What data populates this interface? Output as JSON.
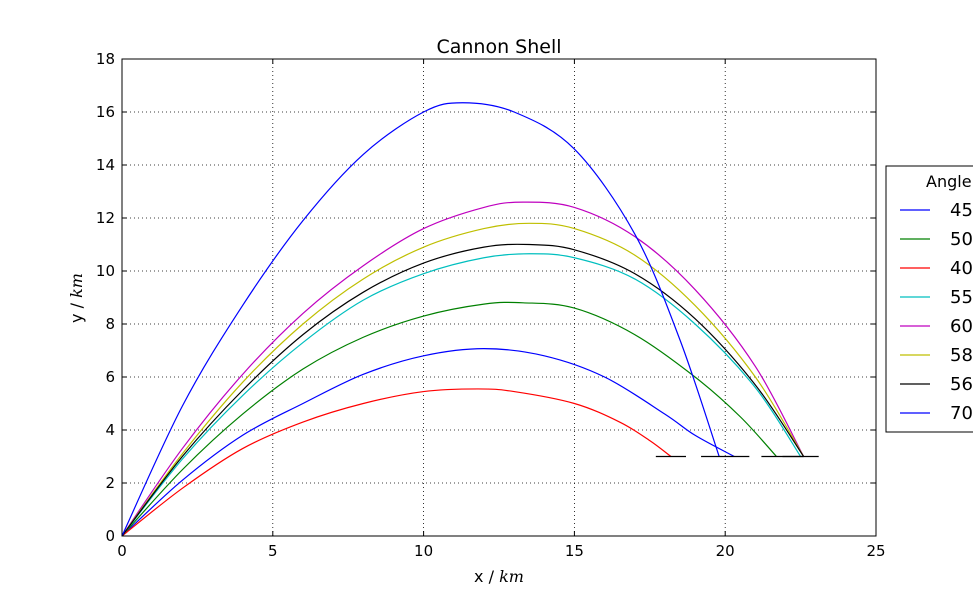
{
  "chart_data": {
    "type": "line",
    "title": "Cannon Shell",
    "xlabel": "x / ",
    "xlabel_unit": "km",
    "ylabel": "y / ",
    "ylabel_unit": "km",
    "xlim": [
      0,
      25
    ],
    "ylim": [
      0,
      18
    ],
    "xticks": [
      0,
      5,
      10,
      15,
      20,
      25
    ],
    "yticks": [
      0,
      2,
      4,
      6,
      8,
      10,
      12,
      14,
      16,
      18
    ],
    "grid": true,
    "legend": {
      "title": "Angle",
      "placement": "outside-right"
    },
    "target_height": 3.0,
    "series": [
      {
        "name": "45",
        "color": "#0000ff",
        "x": [
          0,
          2,
          4,
          6,
          8,
          10,
          12,
          14,
          16,
          18,
          19,
          20.3
        ],
        "y": [
          0,
          2.1,
          3.8,
          5.0,
          6.1,
          6.8,
          7.07,
          6.8,
          6.0,
          4.6,
          3.8,
          3.0
        ]
      },
      {
        "name": "50",
        "color": "#008000",
        "x": [
          0,
          2,
          4,
          6,
          8,
          10,
          12,
          13.3,
          15,
          17,
          19,
          20.5,
          21.7
        ],
        "y": [
          0,
          2.5,
          4.6,
          6.3,
          7.5,
          8.3,
          8.75,
          8.8,
          8.6,
          7.6,
          6.0,
          4.5,
          3.0
        ]
      },
      {
        "name": "40",
        "color": "#ff0000",
        "x": [
          0,
          2,
          4,
          6,
          8,
          10,
          11.8,
          13,
          15,
          16.5,
          17.5,
          18.2
        ],
        "y": [
          0,
          1.8,
          3.3,
          4.3,
          5.0,
          5.45,
          5.55,
          5.45,
          5.0,
          4.3,
          3.6,
          3.0
        ]
      },
      {
        "name": "55",
        "color": "#00bfbf",
        "x": [
          0,
          2,
          4,
          6,
          8,
          10,
          12,
          13.5,
          15,
          17,
          19,
          21,
          22.5
        ],
        "y": [
          0,
          2.9,
          5.3,
          7.3,
          8.9,
          9.9,
          10.5,
          10.65,
          10.5,
          9.7,
          8.0,
          5.6,
          3.0
        ]
      },
      {
        "name": "60",
        "color": "#bf00bf",
        "x": [
          0,
          2,
          4,
          6,
          8,
          10,
          12,
          13.3,
          15,
          17,
          19,
          21,
          22.6
        ],
        "y": [
          0,
          3.3,
          6.1,
          8.4,
          10.2,
          11.6,
          12.4,
          12.6,
          12.4,
          11.3,
          9.3,
          6.4,
          3.0
        ]
      },
      {
        "name": "58",
        "color": "#bfbf00",
        "x": [
          0,
          2,
          4,
          6,
          8,
          10,
          12,
          13.5,
          15,
          17,
          19,
          21,
          22.6
        ],
        "y": [
          0,
          3.1,
          5.8,
          8.0,
          9.7,
          10.9,
          11.6,
          11.8,
          11.6,
          10.6,
          8.7,
          6.0,
          3.0
        ]
      },
      {
        "name": "56",
        "color": "#000000",
        "x": [
          0,
          2,
          4,
          6,
          8,
          10,
          12,
          13.5,
          15,
          17,
          19,
          21,
          22.6
        ],
        "y": [
          0,
          3.0,
          5.5,
          7.6,
          9.2,
          10.3,
          10.9,
          11.0,
          10.8,
          9.9,
          8.2,
          5.7,
          3.0
        ]
      },
      {
        "name": "70",
        "color": "#0000ff",
        "x": [
          0,
          2,
          4,
          6,
          8,
          10,
          11.3,
          13,
          15,
          17,
          18.5,
          19.8
        ],
        "y": [
          0,
          4.9,
          8.7,
          11.9,
          14.4,
          16.0,
          16.35,
          16.0,
          14.6,
          11.4,
          7.4,
          3.0
        ]
      }
    ],
    "target_markers": [
      {
        "color": "#000000",
        "x": [
          17.7,
          18.7
        ]
      },
      {
        "color": "#000000",
        "x": [
          19.2,
          20.8
        ]
      },
      {
        "color": "#000000",
        "x": [
          21.2,
          22.6
        ]
      },
      {
        "color": "#000000",
        "x": [
          21.9,
          23.1
        ]
      }
    ]
  }
}
